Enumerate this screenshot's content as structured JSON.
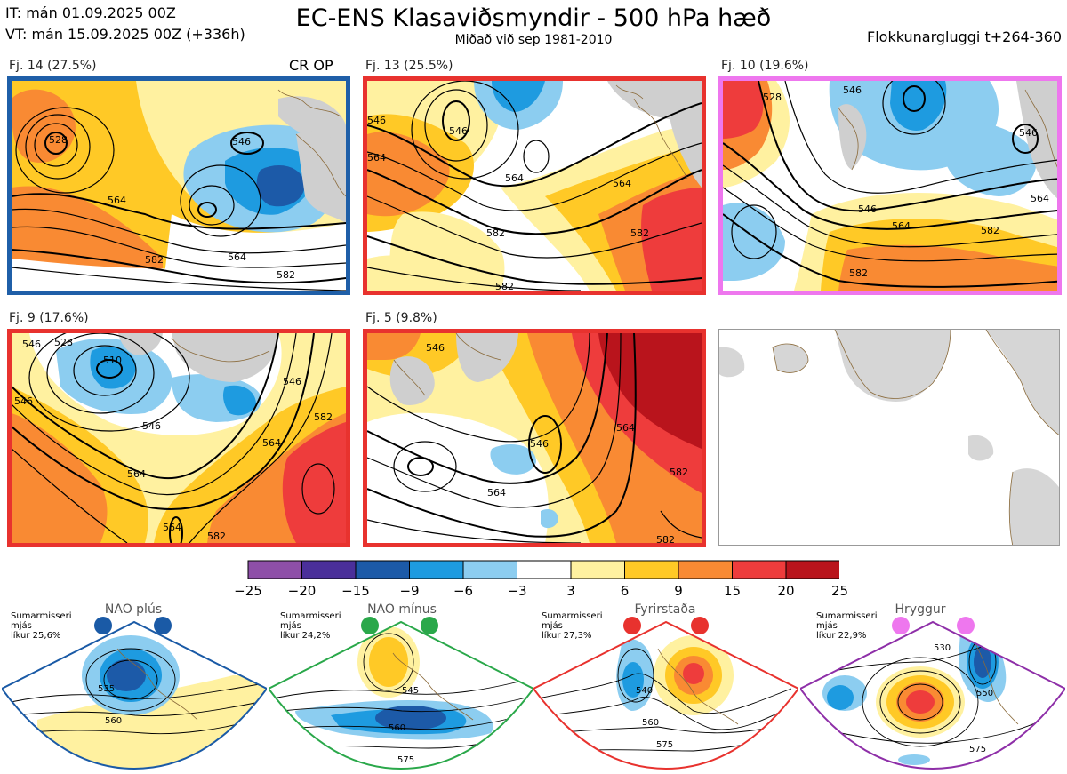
{
  "header": {
    "it_line": "IT: mán 01.09.2025 00Z",
    "vt_line": "VT: mán 15.09.2025 00Z  (+336h)",
    "title": "EC-ENS Klasaviðsmyndir - 500 hPa hæð",
    "subtitle": "Miðað við sep 1981-2010",
    "window": "Flokkunargluggi t+264-360"
  },
  "clusters": [
    {
      "label": "Fj. 14 (27.5%)",
      "tag": "CR OP",
      "border_color": "#1f5fa8",
      "contours": [
        "528",
        "546",
        "564",
        "582"
      ],
      "extra_contours": [
        "528",
        "546",
        "564",
        "582"
      ]
    },
    {
      "label": "Fj. 13 (25.5%)",
      "border_color": "#e8322e",
      "contours": [
        "546",
        "546",
        "564",
        "564",
        "582",
        "564",
        "582",
        "582"
      ]
    },
    {
      "label": "Fj. 10 (19.6%)",
      "border_color": "#ee77ee",
      "contours": [
        "528",
        "546",
        "546",
        "564",
        "546",
        "564",
        "582",
        "582"
      ]
    },
    {
      "label": "Fj. 9 (17.6%)",
      "border_color": "#e8322e",
      "contours": [
        "546",
        "528",
        "510",
        "546",
        "546",
        "546",
        "564",
        "564",
        "564",
        "582",
        "582"
      ]
    },
    {
      "label": "Fj. 5 (9.8%)",
      "border_color": "#e8322e",
      "contours": [
        "546",
        "546",
        "564",
        "564",
        "582",
        "582"
      ]
    }
  ],
  "colorbar": {
    "ticks": [
      "−25",
      "−20",
      "−15",
      "−9",
      "−6",
      "−3",
      "3",
      "6",
      "9",
      "15",
      "20",
      "25"
    ],
    "colors": [
      "#8e4fa8",
      "#4a2f9a",
      "#1c5aa8",
      "#1e9be0",
      "#8ccdf0",
      "#ffffff",
      "#fff1a0",
      "#ffc926",
      "#f98a33",
      "#ee3c3c",
      "#b9141c"
    ]
  },
  "regimes": [
    {
      "name": "NAO plús",
      "clim": [
        "Sumarmisseri",
        "mjás",
        "líkur 25,6%"
      ],
      "color": "#1a5aa6",
      "contours": [
        "535",
        "560"
      ]
    },
    {
      "name": "NAO mínus",
      "clim": [
        "Sumarmisseri",
        "mjás",
        "líkur 24,2%"
      ],
      "color": "#2aa84a",
      "contours": [
        "545",
        "560",
        "575"
      ]
    },
    {
      "name": "Fyrirstaða",
      "clim": [
        "Sumarmisseri",
        "mjás",
        "líkur 27,3%"
      ],
      "color": "#e8322e",
      "contours": [
        "540",
        "560",
        "575"
      ]
    },
    {
      "name": "Hryggur",
      "clim": [
        "Sumarmisseri",
        "mjás",
        "líkur 22,9%"
      ],
      "color": "#ee77ee",
      "contours": [
        "530",
        "550",
        "575"
      ]
    }
  ],
  "icons": {
    "coastline": "coastline-icon",
    "regime_marker": "regime-dot-icon"
  }
}
